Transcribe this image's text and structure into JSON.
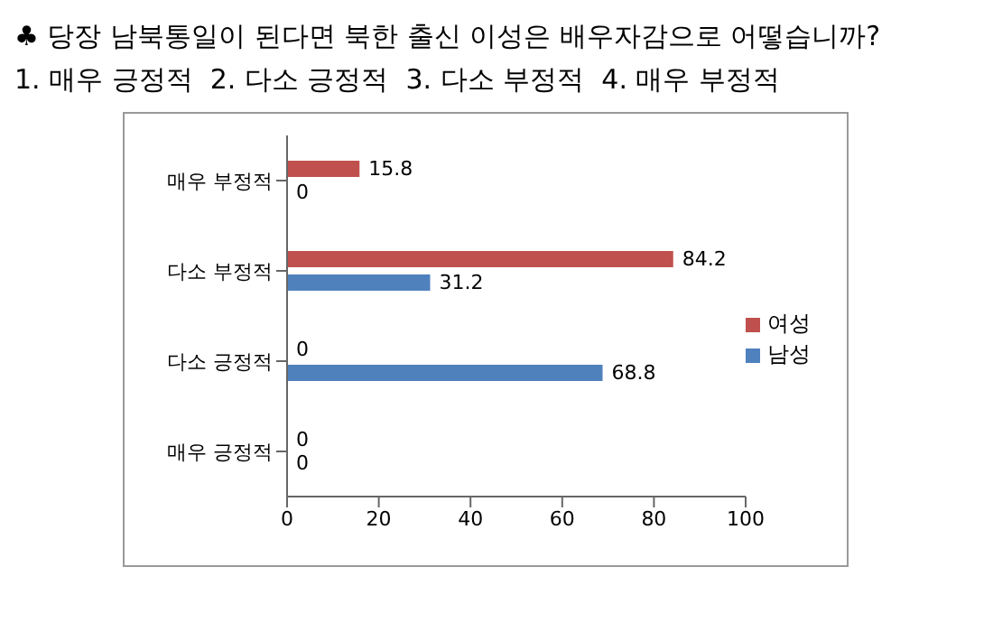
{
  "chart_data": {
    "type": "bar",
    "orientation": "horizontal",
    "title": "♣ 당장 남북통일이 된다면 북한 출신 이성은 배우자감으로 어떻습니까?",
    "subtitle": "1. 매우 긍정적  2. 다소 긍정적  3. 다소 부정적  4. 매우 부정적",
    "categories": [
      "매우 부정적",
      "다소 부정적",
      "다소 긍정적",
      "매우 긍정적"
    ],
    "series": [
      {
        "name": "여성",
        "color": "#c0504d",
        "values": [
          15.8,
          84.2,
          0,
          0
        ]
      },
      {
        "name": "남성",
        "color": "#4f81bd",
        "values": [
          0,
          31.2,
          68.8,
          0
        ]
      }
    ],
    "xlim": [
      0,
      100
    ],
    "xticks": [
      0,
      20,
      40,
      60,
      80,
      100
    ],
    "data_labels": true,
    "legend": "right",
    "grid": false
  }
}
